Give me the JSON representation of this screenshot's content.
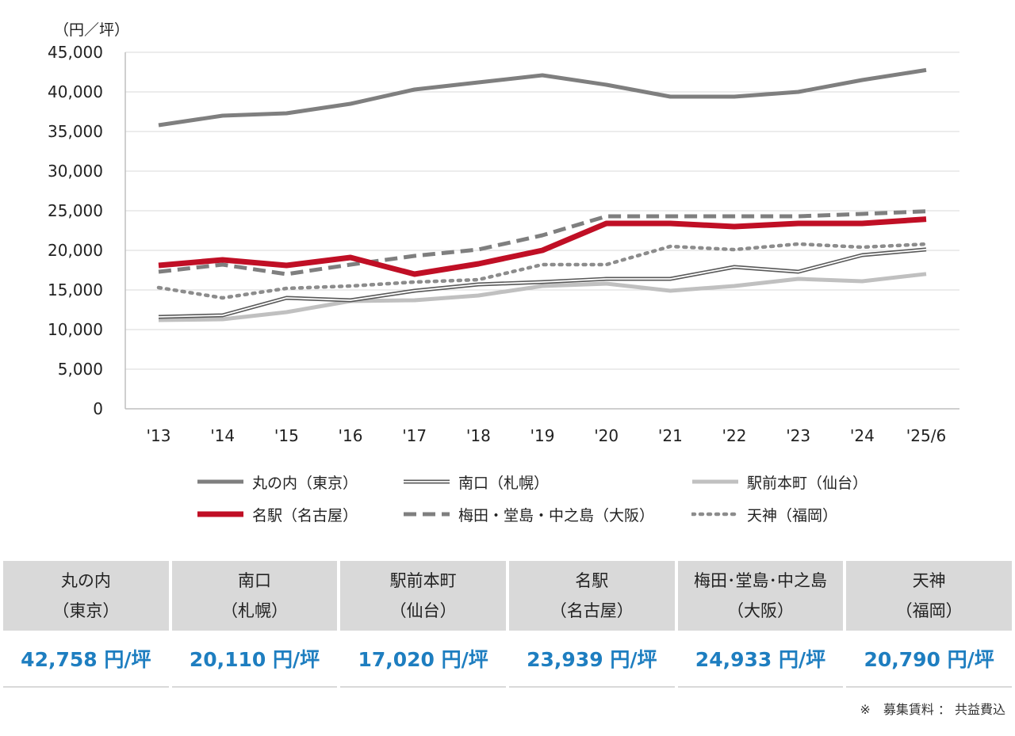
{
  "chart_data": {
    "type": "line",
    "unit_label": "（円／坪）",
    "categories": [
      "'13",
      "'14",
      "'15",
      "'16",
      "'17",
      "'18",
      "'19",
      "'20",
      "'21",
      "'22",
      "'23",
      "'24",
      "'25/6"
    ],
    "ylim": [
      0,
      45000
    ],
    "yticks": [
      {
        "value": 0,
        "label": "0"
      },
      {
        "value": 5000,
        "label": "5,000"
      },
      {
        "value": 10000,
        "label": "10,000"
      },
      {
        "value": 15000,
        "label": "15,000"
      },
      {
        "value": 20000,
        "label": "20,000"
      },
      {
        "value": 25000,
        "label": "25,000"
      },
      {
        "value": 30000,
        "label": "30,000"
      },
      {
        "value": 35000,
        "label": "35,000"
      },
      {
        "value": 40000,
        "label": "40,000"
      },
      {
        "value": 45000,
        "label": "45,000"
      }
    ],
    "grid": true,
    "legend_position": "bottom",
    "series": [
      {
        "name": "丸の内（東京）",
        "style": "solid-thick",
        "color": "#7f7f7f",
        "values": [
          35800,
          37000,
          37300,
          38500,
          40300,
          41200,
          42100,
          40900,
          39400,
          39400,
          40000,
          41500,
          42758
        ]
      },
      {
        "name": "南口（札幌）",
        "style": "double",
        "color": "#595959",
        "values": [
          11600,
          11800,
          14000,
          13700,
          14900,
          15700,
          16000,
          16400,
          16400,
          17900,
          17300,
          19400,
          20110
        ]
      },
      {
        "name": "駅前本町（仙台）",
        "style": "solid-light",
        "color": "#c0c0c0",
        "values": [
          11200,
          11300,
          12200,
          13600,
          13700,
          14300,
          15500,
          15800,
          14900,
          15500,
          16400,
          16100,
          17020
        ]
      },
      {
        "name": "名駅（名古屋）",
        "style": "solid-red",
        "color": "#c00f25",
        "values": [
          18100,
          18800,
          18100,
          19100,
          17000,
          18300,
          20000,
          23400,
          23400,
          23000,
          23400,
          23400,
          23939
        ]
      },
      {
        "name": "梅田・堂島・中之島（大阪）",
        "style": "dashed",
        "color": "#7f7f7f",
        "values": [
          17300,
          18200,
          17000,
          18200,
          19300,
          20100,
          21900,
          24300,
          24300,
          24300,
          24300,
          24600,
          24933
        ]
      },
      {
        "name": "天神（福岡）",
        "style": "dotted",
        "color": "#8c8c8c",
        "values": [
          15300,
          14000,
          15200,
          15500,
          16000,
          16300,
          18200,
          18200,
          20500,
          20100,
          20800,
          20400,
          20790
        ]
      }
    ]
  },
  "summary_table": [
    {
      "name": "丸の内",
      "area": "（東京）",
      "value": "42,758 円/坪"
    },
    {
      "name": "南口",
      "area": "（札幌）",
      "value": "20,110 円/坪"
    },
    {
      "name": "駅前本町",
      "area": "（仙台）",
      "value": "17,020 円/坪"
    },
    {
      "name": "名駅",
      "area": "（名古屋）",
      "value": "23,939 円/坪"
    },
    {
      "name": "梅田･堂島･中之島",
      "area": "（大阪）",
      "value": "24,933 円/坪"
    },
    {
      "name": "天神",
      "area": "（福岡）",
      "value": "20,790 円/坪"
    }
  ],
  "note": "※　募集賃料 ： 共益費込"
}
